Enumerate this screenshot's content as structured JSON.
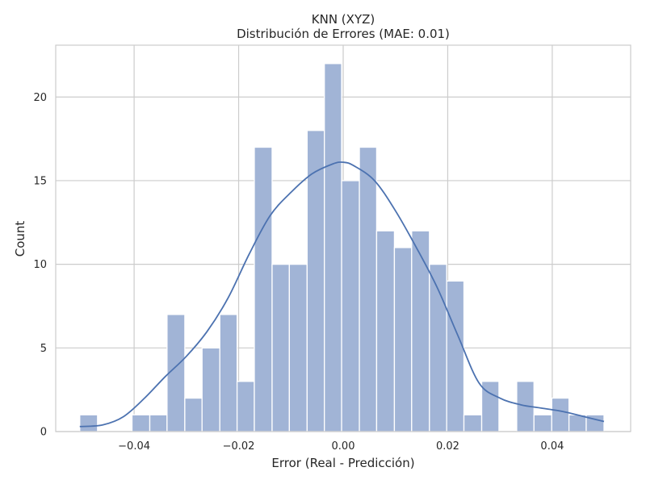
{
  "chart_data": {
    "type": "bar",
    "title": "KNN (XYZ)",
    "subtitle": "Distribución de Errores (MAE: 0.01)",
    "xlabel": "Error (Real - Predicción)",
    "ylabel": "Count",
    "xlim": [
      -0.055,
      0.055
    ],
    "ylim": [
      0,
      23.1
    ],
    "grid": true,
    "bin_edges": [
      -0.0504,
      -0.047,
      -0.0437,
      -0.0404,
      -0.037,
      -0.0337,
      -0.0303,
      -0.027,
      -0.0236,
      -0.0203,
      -0.017,
      -0.0136,
      -0.0103,
      -0.0069,
      -0.0036,
      -0.0003,
      0.0031,
      0.0064,
      0.0098,
      0.0131,
      0.0165,
      0.0198,
      0.0231,
      0.0265,
      0.0298,
      0.0332,
      0.0365,
      0.0399,
      0.0432,
      0.0465,
      0.0499
    ],
    "values": [
      1,
      0,
      0,
      1,
      1,
      7,
      2,
      5,
      7,
      3,
      17,
      10,
      10,
      18,
      22,
      15,
      17,
      12,
      11,
      12,
      10,
      9,
      1,
      3,
      0,
      3,
      1,
      2,
      1,
      1
    ],
    "x_ticks": [
      {
        "value": -0.04,
        "label": "−0.04"
      },
      {
        "value": -0.02,
        "label": "−0.02"
      },
      {
        "value": 0.0,
        "label": "0.00"
      },
      {
        "value": 0.02,
        "label": "0.02"
      },
      {
        "value": 0.04,
        "label": "0.04"
      }
    ],
    "y_ticks": [
      {
        "value": 0,
        "label": "0"
      },
      {
        "value": 5,
        "label": "5"
      },
      {
        "value": 10,
        "label": "10"
      },
      {
        "value": 15,
        "label": "15"
      },
      {
        "value": 20,
        "label": "20"
      }
    ],
    "kde": {
      "x": [
        -0.0504,
        -0.046,
        -0.042,
        -0.038,
        -0.034,
        -0.03,
        -0.026,
        -0.022,
        -0.018,
        -0.014,
        -0.01,
        -0.006,
        -0.002,
        0.0,
        0.002,
        0.006,
        0.01,
        0.014,
        0.018,
        0.022,
        0.026,
        0.03,
        0.034,
        0.038,
        0.042,
        0.046,
        0.0499
      ],
      "y": [
        0.3,
        0.4,
        0.9,
        2.0,
        3.3,
        4.5,
        6.0,
        8.0,
        10.6,
        12.9,
        14.3,
        15.4,
        16.0,
        16.1,
        15.9,
        15.0,
        13.2,
        11.0,
        8.6,
        5.7,
        2.9,
        2.0,
        1.6,
        1.4,
        1.2,
        0.9,
        0.6
      ]
    },
    "colors": {
      "bar_fill": "#a1b4d6",
      "bar_edge": "#ffffff",
      "kde_line": "#4c72b0",
      "grid": "#cccccc",
      "spine": "#cccccc",
      "text": "#262626"
    }
  }
}
